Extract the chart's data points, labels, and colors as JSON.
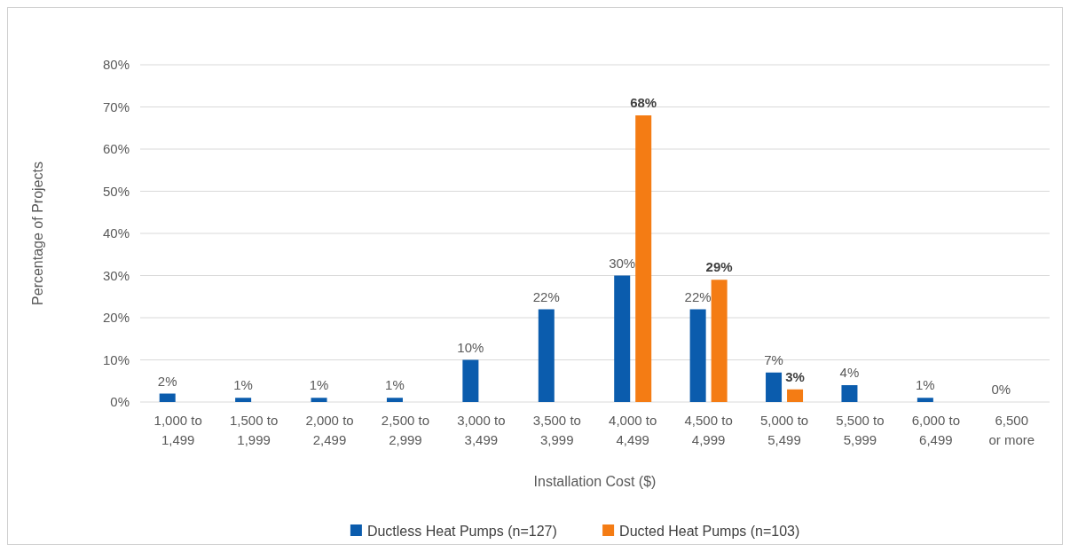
{
  "chart_data": {
    "type": "bar",
    "xlabel": "Installation Cost  ($)",
    "ylabel": "Percentage of Projects",
    "categories": [
      "1,000 to 1,499",
      "1,500 to 1,999",
      "2,000 to 2,499",
      "2,500 to 2,999",
      "3,000 to 3,499",
      "3,500 to 3,999",
      "4,000 to 4,499",
      "4,500 to 4,999",
      "5,000 to 5,499",
      "5,500 to 5,999",
      "6,000 to 6,499",
      "6,500 or more"
    ],
    "series": [
      {
        "name": "Ductless Heat Pumps (n=127)",
        "color": "#0b5cad",
        "values": [
          2,
          1,
          1,
          1,
          10,
          22,
          30,
          22,
          7,
          4,
          1,
          0
        ],
        "value_labels": [
          "2%",
          "1%",
          "1%",
          "1%",
          "10%",
          "22%",
          "30%",
          "22%",
          "7%",
          "4%",
          "1%",
          "0%"
        ]
      },
      {
        "name": "Ducted Heat Pumps (n=103)",
        "color": "#f47c14",
        "values": [
          null,
          null,
          null,
          null,
          null,
          null,
          68,
          29,
          3,
          null,
          null,
          null
        ],
        "value_labels": [
          null,
          null,
          null,
          null,
          null,
          null,
          "68%",
          "29%",
          "3%",
          null,
          null,
          null
        ]
      }
    ],
    "ylim": [
      0,
      80
    ],
    "yticks": [
      {
        "value": 0,
        "label": "0%"
      },
      {
        "value": 10,
        "label": "10%"
      },
      {
        "value": 20,
        "label": "20%"
      },
      {
        "value": 30,
        "label": "30%"
      },
      {
        "value": 40,
        "label": "40%"
      },
      {
        "value": 50,
        "label": "50%"
      },
      {
        "value": 60,
        "label": "60%"
      },
      {
        "value": 70,
        "label": "70%"
      },
      {
        "value": 80,
        "label": "80%"
      }
    ],
    "grid": "y",
    "legend": "bottom"
  }
}
